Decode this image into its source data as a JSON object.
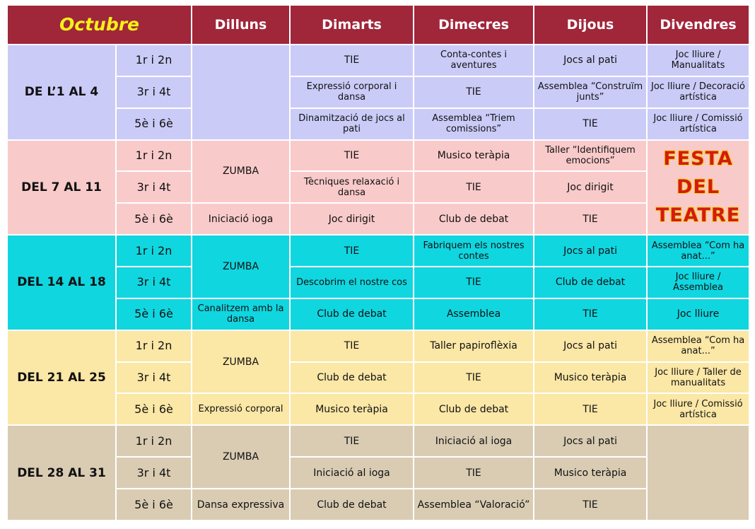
{
  "header": {
    "month": "Octubre",
    "days": [
      "Dilluns",
      "Dimarts",
      "Dimecres",
      "Dijous",
      "Divendres"
    ]
  },
  "weeks": [
    {
      "label": "DE L’1 AL 4",
      "groups": [
        "1r i 2n",
        "3r i 4t",
        "5è i 6è"
      ],
      "dilluns": [
        ""
      ],
      "dimarts": [
        "TIE",
        "Expressió corporal i dansa",
        "Dinamització de jocs al pati"
      ],
      "dimecres": [
        "Conta-contes i aventures",
        "TIE",
        "Assemblea “Triem comissions”"
      ],
      "dijous": [
        "Jocs al pati",
        "Assemblea “Construïm junts”",
        "TIE"
      ],
      "divendres": [
        "Joc lliure / Manualitats",
        "Joc lliure / Decoració artística",
        "Joc lliure / Comissió artística"
      ]
    },
    {
      "label": "DEL 7 AL 11",
      "groups": [
        "1r i 2n",
        "3r i 4t",
        "5è i 6è"
      ],
      "dilluns": [
        "ZUMBA",
        "Iniciació ioga"
      ],
      "dimarts": [
        "TIE",
        "Tècniques relaxació i dansa",
        "Joc dirigit"
      ],
      "dimecres": [
        "Musico teràpia",
        "TIE",
        "Club de debat"
      ],
      "dijous": [
        "Taller “Identifiquem emocions”",
        "Joc dirigit",
        "TIE"
      ],
      "divendres": [
        "FESTA",
        "DEL",
        "TEATRE"
      ]
    },
    {
      "label": "DEL 14 AL 18",
      "groups": [
        "1r i 2n",
        "3r i 4t",
        "5è i 6è"
      ],
      "dilluns": [
        "ZUMBA",
        "Canalitzem amb la dansa"
      ],
      "dimarts": [
        "TIE",
        "Descobrim el nostre cos",
        "Club de debat"
      ],
      "dimecres": [
        "Fabriquem els nostres contes",
        "TIE",
        "Assemblea"
      ],
      "dijous": [
        "Jocs al pati",
        "Club de debat",
        "TIE"
      ],
      "divendres": [
        "Assemblea “Com ha anat...”",
        "Joc lliure / Assemblea",
        "Joc lliure"
      ]
    },
    {
      "label": "DEL 21 AL 25",
      "groups": [
        "1r i 2n",
        "3r i 4t",
        "5è i 6è"
      ],
      "dilluns": [
        "ZUMBA",
        "Expressió corporal"
      ],
      "dimarts": [
        "TIE",
        "Club de debat",
        "Musico teràpia"
      ],
      "dimecres": [
        "Taller papiroflèxia",
        "TIE",
        "Club de debat"
      ],
      "dijous": [
        "Jocs al pati",
        "Musico teràpia",
        "TIE"
      ],
      "divendres": [
        "Assemblea “Com ha anat...”",
        "Joc lliure / Taller de manualitats",
        "Joc lliure / Comissió artística"
      ]
    },
    {
      "label": "DEL 28 AL 31",
      "groups": [
        "1r i 2n",
        "3r i 4t",
        "5è i 6è"
      ],
      "dilluns": [
        "ZUMBA",
        "Dansa expressiva"
      ],
      "dimarts": [
        "TIE",
        "Iniciació al ioga",
        "Club de debat"
      ],
      "dimecres": [
        "Iniciació al ioga",
        "TIE",
        "Assemblea “Valoració”"
      ],
      "dijous": [
        "Jocs al pati",
        "Musico teràpia",
        "TIE"
      ],
      "divendres": [
        ""
      ]
    }
  ],
  "colors": {
    "header": "#a0263a",
    "month_text": "#f7f019",
    "week1": "#cbcbf8",
    "week2": "#f9caca",
    "week3": "#10d6e0",
    "week4": "#fbe7a6",
    "week5": "#d9ccb3",
    "festa_text": "#d41a14"
  }
}
